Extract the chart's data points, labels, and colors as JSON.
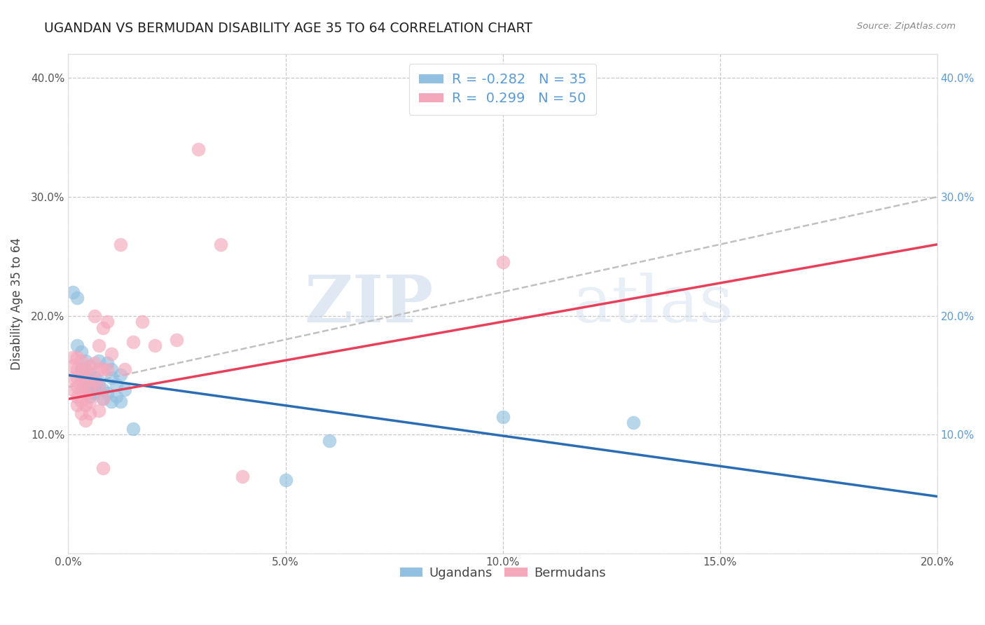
{
  "title": "UGANDAN VS BERMUDAN DISABILITY AGE 35 TO 64 CORRELATION CHART",
  "source_text": "Source: ZipAtlas.com",
  "ylabel": "Disability Age 35 to 64",
  "xlim": [
    0.0,
    0.2
  ],
  "ylim": [
    0.0,
    0.42
  ],
  "x_ticks": [
    0.0,
    0.05,
    0.1,
    0.15,
    0.2
  ],
  "x_tick_labels": [
    "0.0%",
    "5.0%",
    "10.0%",
    "15.0%",
    "20.0%"
  ],
  "y_ticks": [
    0.0,
    0.1,
    0.2,
    0.3,
    0.4
  ],
  "y_tick_labels": [
    "",
    "10.0%",
    "20.0%",
    "30.0%",
    "40.0%"
  ],
  "watermark_zip": "ZIP",
  "watermark_atlas": "atlas",
  "legend_R_ugandan": "-0.282",
  "legend_N_ugandan": "35",
  "legend_R_bermudan": "0.299",
  "legend_N_bermudan": "50",
  "ugandan_color": "#92c0e0",
  "bermudan_color": "#f4a8bc",
  "ugandan_line_color": "#2b6db5",
  "bermudan_line_color": "#e8405a",
  "trend_line_color": "#c0c0c0",
  "background_color": "#ffffff",
  "grid_color": "#c8c8c8",
  "ugandan_points": [
    [
      0.001,
      0.22
    ],
    [
      0.002,
      0.215
    ],
    [
      0.002,
      0.175
    ],
    [
      0.003,
      0.17
    ],
    [
      0.003,
      0.155
    ],
    [
      0.004,
      0.162
    ],
    [
      0.004,
      0.148
    ],
    [
      0.004,
      0.14
    ],
    [
      0.005,
      0.152
    ],
    [
      0.005,
      0.145
    ],
    [
      0.005,
      0.138
    ],
    [
      0.005,
      0.132
    ],
    [
      0.006,
      0.148
    ],
    [
      0.006,
      0.14
    ],
    [
      0.006,
      0.135
    ],
    [
      0.007,
      0.162
    ],
    [
      0.007,
      0.145
    ],
    [
      0.007,
      0.14
    ],
    [
      0.008,
      0.138
    ],
    [
      0.008,
      0.13
    ],
    [
      0.009,
      0.16
    ],
    [
      0.009,
      0.135
    ],
    [
      0.01,
      0.155
    ],
    [
      0.01,
      0.148
    ],
    [
      0.01,
      0.128
    ],
    [
      0.011,
      0.142
    ],
    [
      0.011,
      0.132
    ],
    [
      0.012,
      0.15
    ],
    [
      0.012,
      0.128
    ],
    [
      0.013,
      0.138
    ],
    [
      0.015,
      0.105
    ],
    [
      0.05,
      0.062
    ],
    [
      0.06,
      0.095
    ],
    [
      0.1,
      0.115
    ],
    [
      0.13,
      0.11
    ]
  ],
  "bermudan_points": [
    [
      0.001,
      0.165
    ],
    [
      0.001,
      0.158
    ],
    [
      0.001,
      0.148
    ],
    [
      0.001,
      0.138
    ],
    [
      0.002,
      0.165
    ],
    [
      0.002,
      0.155
    ],
    [
      0.002,
      0.148
    ],
    [
      0.002,
      0.14
    ],
    [
      0.002,
      0.132
    ],
    [
      0.002,
      0.125
    ],
    [
      0.003,
      0.162
    ],
    [
      0.003,
      0.152
    ],
    [
      0.003,
      0.145
    ],
    [
      0.003,
      0.138
    ],
    [
      0.003,
      0.128
    ],
    [
      0.003,
      0.118
    ],
    [
      0.004,
      0.155
    ],
    [
      0.004,
      0.145
    ],
    [
      0.004,
      0.135
    ],
    [
      0.004,
      0.125
    ],
    [
      0.004,
      0.112
    ],
    [
      0.005,
      0.158
    ],
    [
      0.005,
      0.148
    ],
    [
      0.005,
      0.138
    ],
    [
      0.005,
      0.128
    ],
    [
      0.005,
      0.118
    ],
    [
      0.006,
      0.2
    ],
    [
      0.006,
      0.16
    ],
    [
      0.006,
      0.145
    ],
    [
      0.007,
      0.175
    ],
    [
      0.007,
      0.155
    ],
    [
      0.007,
      0.14
    ],
    [
      0.007,
      0.12
    ],
    [
      0.008,
      0.19
    ],
    [
      0.008,
      0.155
    ],
    [
      0.008,
      0.13
    ],
    [
      0.009,
      0.195
    ],
    [
      0.009,
      0.155
    ],
    [
      0.01,
      0.168
    ],
    [
      0.012,
      0.26
    ],
    [
      0.013,
      0.155
    ],
    [
      0.015,
      0.178
    ],
    [
      0.017,
      0.195
    ],
    [
      0.02,
      0.175
    ],
    [
      0.025,
      0.18
    ],
    [
      0.03,
      0.34
    ],
    [
      0.035,
      0.26
    ],
    [
      0.04,
      0.065
    ],
    [
      0.1,
      0.245
    ],
    [
      0.008,
      0.072
    ]
  ]
}
